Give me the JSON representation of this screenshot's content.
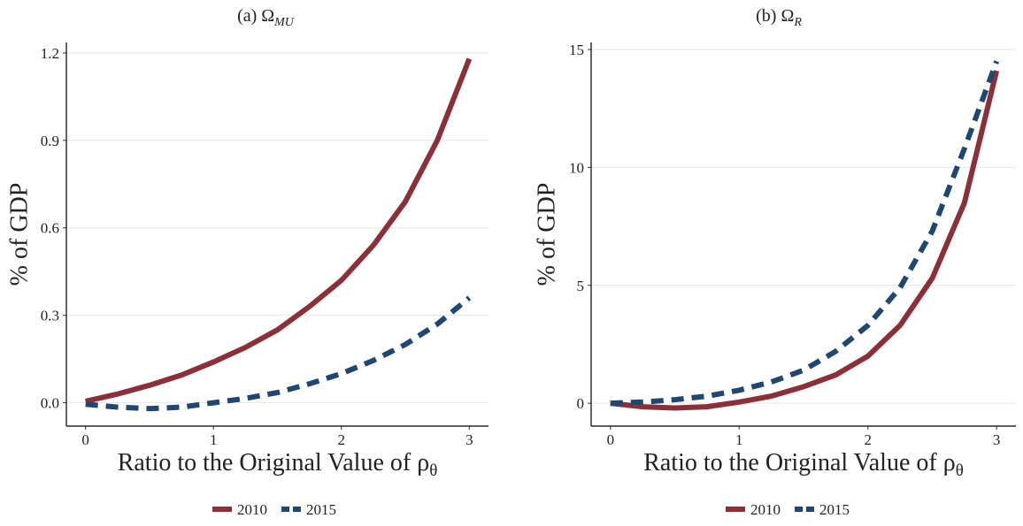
{
  "chart_data": [
    {
      "type": "line",
      "title": "(a) Ω",
      "title_subscript": "MU",
      "x_label": "Ratio to the Original Value of ρ",
      "x_label_subscript": "θ",
      "y_label": "% of GDP",
      "x": [
        0,
        0.25,
        0.5,
        0.75,
        1,
        1.25,
        1.5,
        1.75,
        2,
        2.25,
        2.5,
        2.75,
        3
      ],
      "series": [
        {
          "name": "2010",
          "color": "#8b3039",
          "line_style": "solid",
          "values": [
            0.005,
            0.03,
            0.06,
            0.095,
            0.14,
            0.19,
            0.25,
            0.33,
            0.42,
            0.54,
            0.69,
            0.9,
            1.18
          ]
        },
        {
          "name": "2015",
          "color": "#1f4770",
          "line_style": "dashed",
          "values": [
            -0.005,
            -0.015,
            -0.02,
            -0.015,
            0,
            0.015,
            0.035,
            0.065,
            0.1,
            0.145,
            0.2,
            0.27,
            0.36
          ]
        }
      ],
      "xlim": [
        -0.15,
        3.15
      ],
      "xticks": [
        0,
        1,
        2,
        3
      ],
      "ylim": [
        -0.08,
        1.236
      ],
      "yticks": [
        {
          "value": 0,
          "label": "0.0"
        },
        0.3,
        0.6,
        0.9,
        1.2
      ],
      "grid": true
    },
    {
      "type": "line",
      "title": "(b) Ω",
      "title_subscript": "R",
      "x_label": "Ratio to the Original Value of ρ",
      "x_label_subscript": "θ",
      "y_label": "% of GDP",
      "x": [
        0,
        0.25,
        0.5,
        0.75,
        1,
        1.25,
        1.5,
        1.75,
        2,
        2.25,
        2.5,
        2.75,
        3
      ],
      "series": [
        {
          "name": "2010",
          "color": "#8b3039",
          "line_style": "solid",
          "values": [
            0,
            -0.15,
            -0.2,
            -0.15,
            0.05,
            0.3,
            0.7,
            1.2,
            2.0,
            3.3,
            5.3,
            8.5,
            14.1
          ]
        },
        {
          "name": "2015",
          "color": "#1f4770",
          "line_style": "dashed",
          "values": [
            0,
            0.05,
            0.15,
            0.3,
            0.55,
            0.9,
            1.4,
            2.2,
            3.3,
            4.9,
            7.3,
            10.8,
            14.5
          ]
        }
      ],
      "xlim": [
        -0.15,
        3.15
      ],
      "xticks": [
        0,
        1,
        2,
        3
      ],
      "ylim": [
        -0.97,
        15.3
      ],
      "yticks": [
        0,
        5,
        10,
        15
      ],
      "grid": true
    }
  ]
}
